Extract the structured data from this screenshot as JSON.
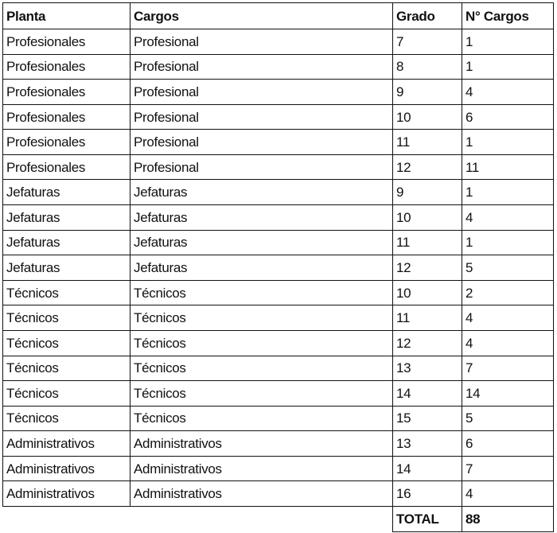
{
  "table": {
    "header": [
      "Planta",
      "Cargos",
      "Grado",
      "N° Cargos"
    ],
    "rows": [
      [
        "Profesionales",
        "Profesional",
        7,
        1
      ],
      [
        "Profesionales",
        "Profesional",
        8,
        1
      ],
      [
        "Profesionales",
        "Profesional",
        9,
        4
      ],
      [
        "Profesionales",
        "Profesional",
        10,
        6
      ],
      [
        "Profesionales",
        "Profesional",
        11,
        1
      ],
      [
        "Profesionales",
        "Profesional",
        12,
        11
      ],
      [
        "Jefaturas",
        "Jefaturas",
        9,
        1
      ],
      [
        "Jefaturas",
        "Jefaturas",
        10,
        4
      ],
      [
        "Jefaturas",
        "Jefaturas",
        11,
        1
      ],
      [
        "Jefaturas",
        "Jefaturas",
        12,
        5
      ],
      [
        "Técnicos",
        "Técnicos",
        10,
        2
      ],
      [
        "Técnicos",
        "Técnicos",
        11,
        4
      ],
      [
        "Técnicos",
        "Técnicos",
        12,
        4
      ],
      [
        "Técnicos",
        "Técnicos",
        13,
        7
      ],
      [
        "Técnicos",
        "Técnicos",
        14,
        14
      ],
      [
        "Técnicos",
        "Técnicos",
        15,
        5
      ],
      [
        "Administrativos",
        "Administrativos",
        13,
        6
      ],
      [
        "Administrativos",
        "Administrativos",
        14,
        7
      ],
      [
        "Administrativos",
        "Administrativos",
        16,
        4
      ]
    ],
    "total": {
      "label": "TOTAL",
      "value": 88
    }
  }
}
